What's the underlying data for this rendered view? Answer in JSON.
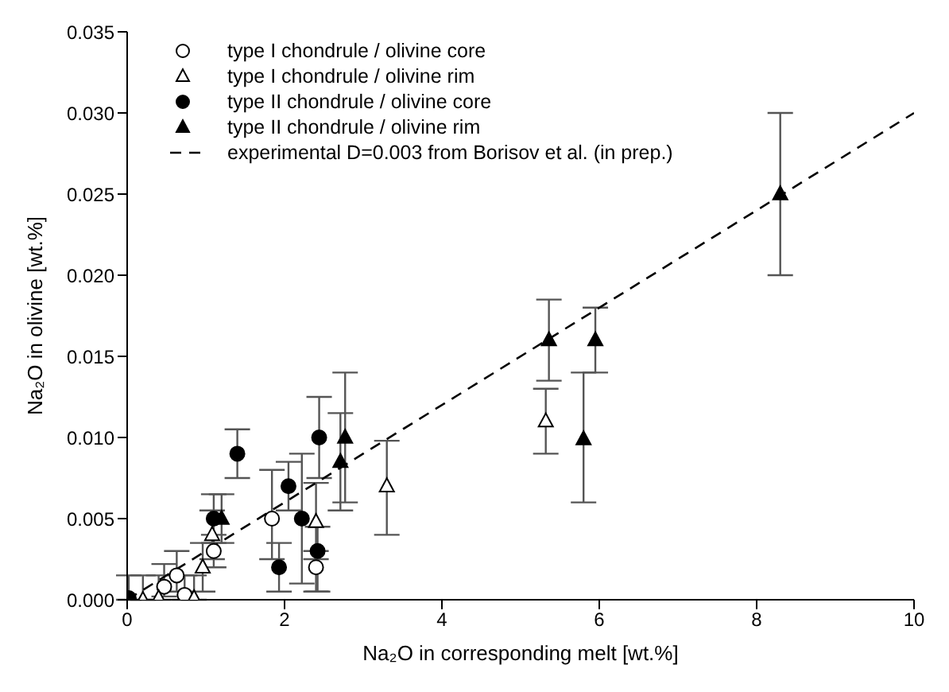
{
  "chart_data": {
    "type": "scatter",
    "xlabel": "Na₂O in corresponding melt [wt.%]",
    "ylabel": "Na₂O in olivine [wt.%]",
    "xlim": [
      0,
      10
    ],
    "xticks": [
      0,
      2,
      4,
      6,
      8,
      10
    ],
    "ylim": [
      0,
      0.035
    ],
    "yticks": [
      {
        "value": 0,
        "label": "0.000"
      },
      {
        "value": 0.005,
        "label": "0.005"
      },
      {
        "value": 0.01,
        "label": "0.010"
      },
      {
        "value": 0.015,
        "label": "0.015"
      },
      {
        "value": 0.02,
        "label": "0.020"
      },
      {
        "value": 0.025,
        "label": "0.025"
      },
      {
        "value": 0.03,
        "label": "0.030"
      },
      {
        "value": 0.035,
        "label": "0.035"
      }
    ],
    "legend": "top left",
    "series": [
      {
        "name": "type I chondrule / olivine core",
        "marker": "circle",
        "color": "#ffffff",
        "x": [
          0.47,
          0.63,
          0.73,
          1.1,
          1.84,
          2.4
        ],
        "values": [
          0.0008,
          0.0015,
          0.0003,
          0.003,
          0.005,
          0.002
        ],
        "errors": [
          [
            0.0002,
            0.0022
          ],
          [
            0.0005,
            0.003
          ],
          [
            0,
            0.0015
          ],
          [
            0.002,
            0.004
          ],
          [
            0.0025,
            0.008
          ],
          [
            0.0005,
            0.003
          ]
        ]
      },
      {
        "name": "type I chondrule / olivine rim",
        "marker": "triangle",
        "color": "#ffffff",
        "x": [
          0.2,
          0.4,
          0.85,
          0.96,
          1.08,
          2.4,
          3.3,
          5.32
        ],
        "values": [
          0,
          0.0001,
          0.0001,
          0.002,
          0.004,
          0.0048,
          0.007,
          0.011
        ],
        "errors": [
          [
            0,
            0.0015
          ],
          [
            0,
            0.0015
          ],
          [
            0,
            0.0015
          ],
          [
            0.0005,
            0.0035
          ],
          [
            0.0025,
            0.0055
          ],
          [
            0.0025,
            0.0072
          ],
          [
            0.004,
            0.0098
          ],
          [
            0.009,
            0.013
          ]
        ]
      },
      {
        "name": "type II chondrule / olivine core",
        "marker": "circle",
        "color": "#000000",
        "x": [
          0.02,
          1.1,
          1.4,
          1.93,
          2.05,
          2.22,
          2.42,
          2.44
        ],
        "values": [
          0.0001,
          0.005,
          0.009,
          0.002,
          0.007,
          0.005,
          0.003,
          0.01
        ],
        "errors": [
          [
            0,
            0.0015
          ],
          [
            0.0035,
            0.0065
          ],
          [
            0.0075,
            0.0105
          ],
          [
            0.0005,
            0.0035
          ],
          [
            0.0055,
            0.0085
          ],
          [
            0.001,
            0.009
          ],
          [
            0.0005,
            0.0045
          ],
          [
            0.0075,
            0.0125
          ]
        ]
      },
      {
        "name": "type II chondrule / olivine rim",
        "marker": "triangle",
        "color": "#000000",
        "x": [
          1.2,
          2.71,
          2.77,
          5.36,
          5.8,
          5.95,
          8.3
        ],
        "values": [
          0.005,
          0.0085,
          0.01,
          0.016,
          0.0099,
          0.016,
          0.025
        ],
        "errors": [
          [
            0.0035,
            0.0065
          ],
          [
            0.0055,
            0.0115
          ],
          [
            0.006,
            0.014
          ],
          [
            0.0135,
            0.0185
          ],
          [
            0.006,
            0.014
          ],
          [
            0.014,
            0.018
          ],
          [
            0.02,
            0.03
          ]
        ]
      },
      {
        "name": "experimental D=0.003 from Borisov et al. (in prep.)",
        "type": "line",
        "marker": "none",
        "line_style": "dashed",
        "color": "#000000",
        "x": [
          0,
          10
        ],
        "values": [
          0,
          0.03
        ]
      }
    ]
  }
}
